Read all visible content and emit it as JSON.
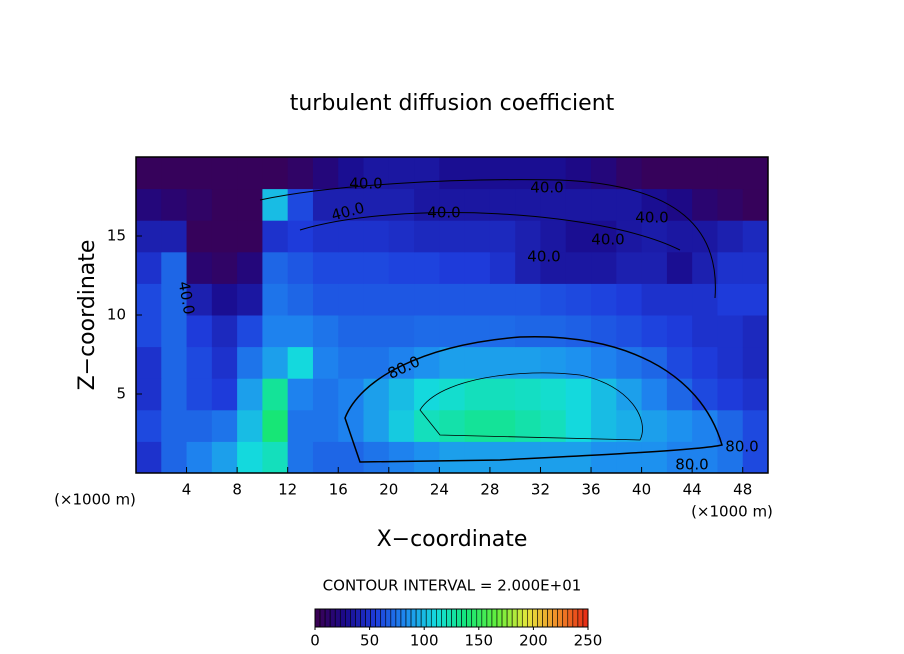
{
  "chart_data": {
    "type": "contour",
    "title": "turbulent diffusion coefficient",
    "xlabel": "X−coordinate",
    "ylabel": "Z−coordinate",
    "x_unit": "(×1000 m)",
    "y_unit": "(×1000 m)",
    "xlim": [
      0,
      50
    ],
    "ylim": [
      0,
      20
    ],
    "xticks": [
      4,
      8,
      12,
      16,
      20,
      24,
      28,
      32,
      36,
      40,
      44,
      48
    ],
    "yticks": [
      5,
      10,
      15
    ],
    "x": [
      1,
      3,
      5,
      7,
      9,
      11,
      13,
      15,
      17,
      19,
      21,
      23,
      25,
      27,
      29,
      31,
      33,
      35,
      37,
      39,
      41,
      43,
      45,
      47,
      49
    ],
    "y": [
      1,
      3,
      5,
      7,
      9,
      11,
      13,
      15,
      17,
      19
    ],
    "z": [
      [
        50,
        70,
        80,
        90,
        110,
        120,
        75,
        70,
        70,
        75,
        80,
        85,
        90,
        90,
        90,
        90,
        90,
        90,
        85,
        85,
        85,
        80,
        80,
        75,
        60
      ],
      [
        60,
        70,
        70,
        75,
        100,
        140,
        75,
        75,
        80,
        90,
        105,
        120,
        125,
        130,
        130,
        125,
        120,
        110,
        100,
        95,
        90,
        85,
        80,
        70,
        60
      ],
      [
        50,
        70,
        60,
        55,
        90,
        130,
        80,
        75,
        80,
        90,
        100,
        110,
        115,
        120,
        120,
        118,
        115,
        110,
        100,
        90,
        80,
        70,
        60,
        55,
        50
      ],
      [
        50,
        70,
        60,
        50,
        75,
        90,
        110,
        80,
        75,
        75,
        80,
        85,
        90,
        90,
        90,
        90,
        88,
        85,
        80,
        75,
        70,
        60,
        55,
        50,
        45
      ],
      [
        60,
        70,
        55,
        45,
        60,
        80,
        80,
        75,
        70,
        70,
        70,
        72,
        72,
        72,
        72,
        70,
        70,
        68,
        65,
        62,
        58,
        55,
        50,
        50,
        45
      ],
      [
        60,
        70,
        40,
        30,
        35,
        75,
        70,
        65,
        65,
        65,
        65,
        65,
        65,
        65,
        65,
        65,
        62,
        60,
        58,
        55,
        50,
        50,
        50,
        55,
        55
      ],
      [
        50,
        70,
        15,
        10,
        20,
        70,
        65,
        60,
        60,
        60,
        58,
        58,
        55,
        55,
        50,
        40,
        35,
        35,
        35,
        40,
        40,
        30,
        40,
        50,
        50
      ],
      [
        40,
        40,
        5,
        5,
        5,
        50,
        55,
        50,
        50,
        50,
        48,
        45,
        45,
        45,
        45,
        40,
        35,
        30,
        30,
        35,
        38,
        35,
        35,
        40,
        45
      ],
      [
        20,
        15,
        10,
        5,
        5,
        100,
        60,
        40,
        40,
        40,
        40,
        35,
        35,
        35,
        35,
        35,
        35,
        35,
        35,
        35,
        30,
        25,
        15,
        10,
        5
      ],
      [
        5,
        5,
        5,
        5,
        5,
        5,
        10,
        20,
        30,
        35,
        35,
        35,
        30,
        30,
        30,
        30,
        30,
        25,
        20,
        10,
        5,
        5,
        5,
        5,
        5
      ]
    ],
    "contour_labels": [
      "40.0",
      "40.0",
      "40.0",
      "40.0",
      "40.0",
      "40.0",
      "40.0",
      "40.0",
      "80.0",
      "80.0",
      "80.0"
    ],
    "contour_interval": "CONTOUR INTERVAL = 2.000E+01",
    "clim": [
      0,
      250
    ],
    "cticks": [
      0,
      50,
      100,
      150,
      200,
      250
    ],
    "colormap": [
      "#3c0050",
      "#1a0a8c",
      "#1e3cdc",
      "#1e8cf0",
      "#14dcdc",
      "#14e678",
      "#64f03c",
      "#e6e63c",
      "#f08c28",
      "#e62814"
    ]
  }
}
